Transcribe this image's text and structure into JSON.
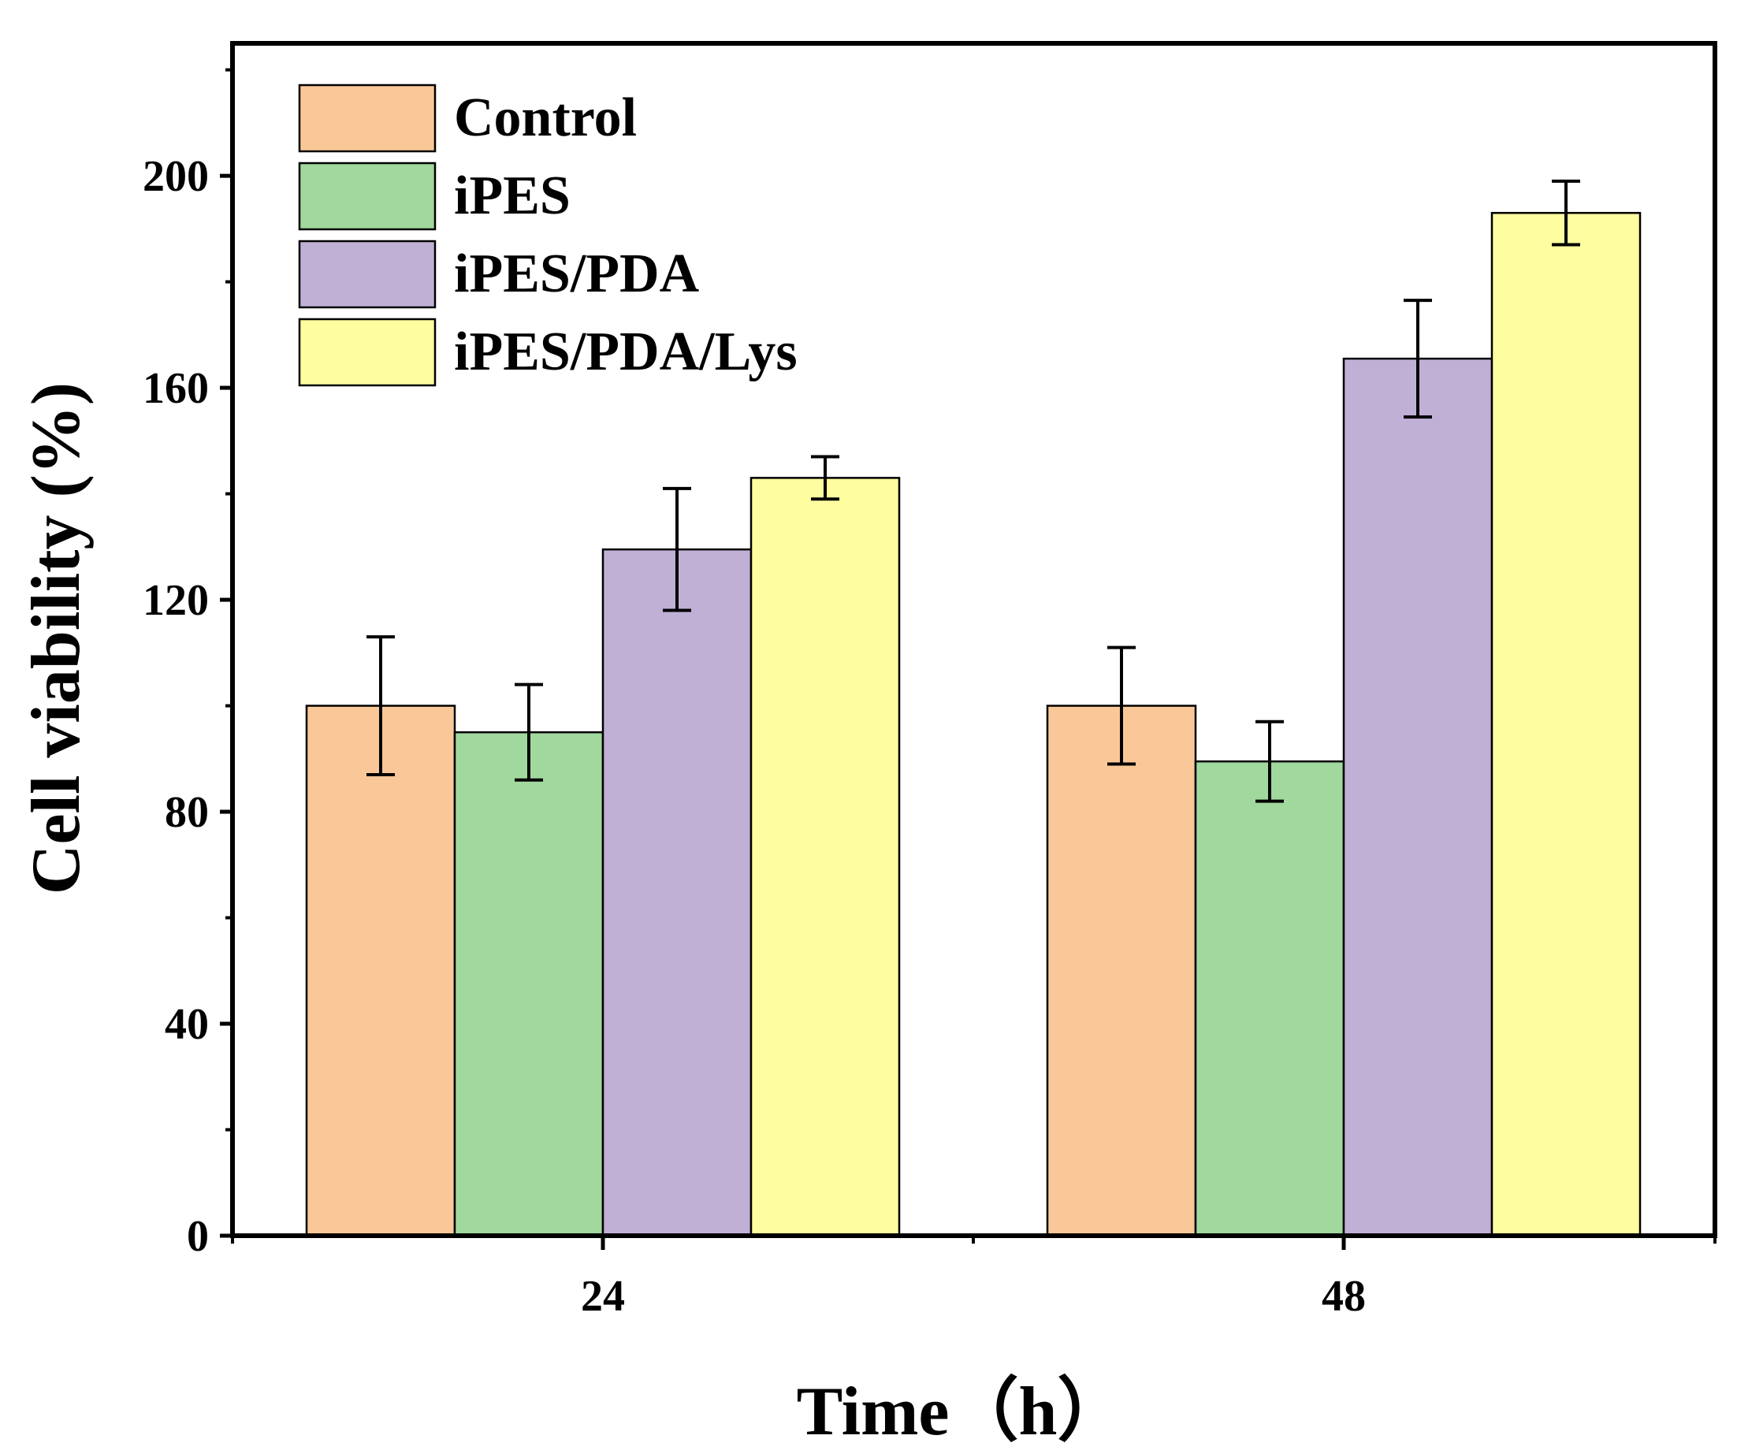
{
  "chart_data": {
    "type": "bar",
    "title": "",
    "xlabel": "Time（h）",
    "ylabel": "Cell viability (%)",
    "categories": [
      "24",
      "48"
    ],
    "ylim": [
      0,
      225
    ],
    "yticks": [
      0,
      40,
      80,
      120,
      160,
      200
    ],
    "legend_position": "top-left",
    "series": [
      {
        "name": "Control",
        "color": "#FAC898",
        "values": [
          100,
          100
        ],
        "errors": [
          13,
          11
        ]
      },
      {
        "name": "iPES",
        "color": "#A0D89E",
        "values": [
          95,
          89.5
        ],
        "errors": [
          9,
          7.5
        ]
      },
      {
        "name": "iPES/PDA",
        "color": "#C0B0D6",
        "values": [
          129.5,
          165.5
        ],
        "errors": [
          11.5,
          11
        ]
      },
      {
        "name": "iPES/PDA/Lys",
        "color": "#FEFEA0",
        "values": [
          143,
          193
        ],
        "errors": [
          4,
          6
        ]
      }
    ]
  }
}
